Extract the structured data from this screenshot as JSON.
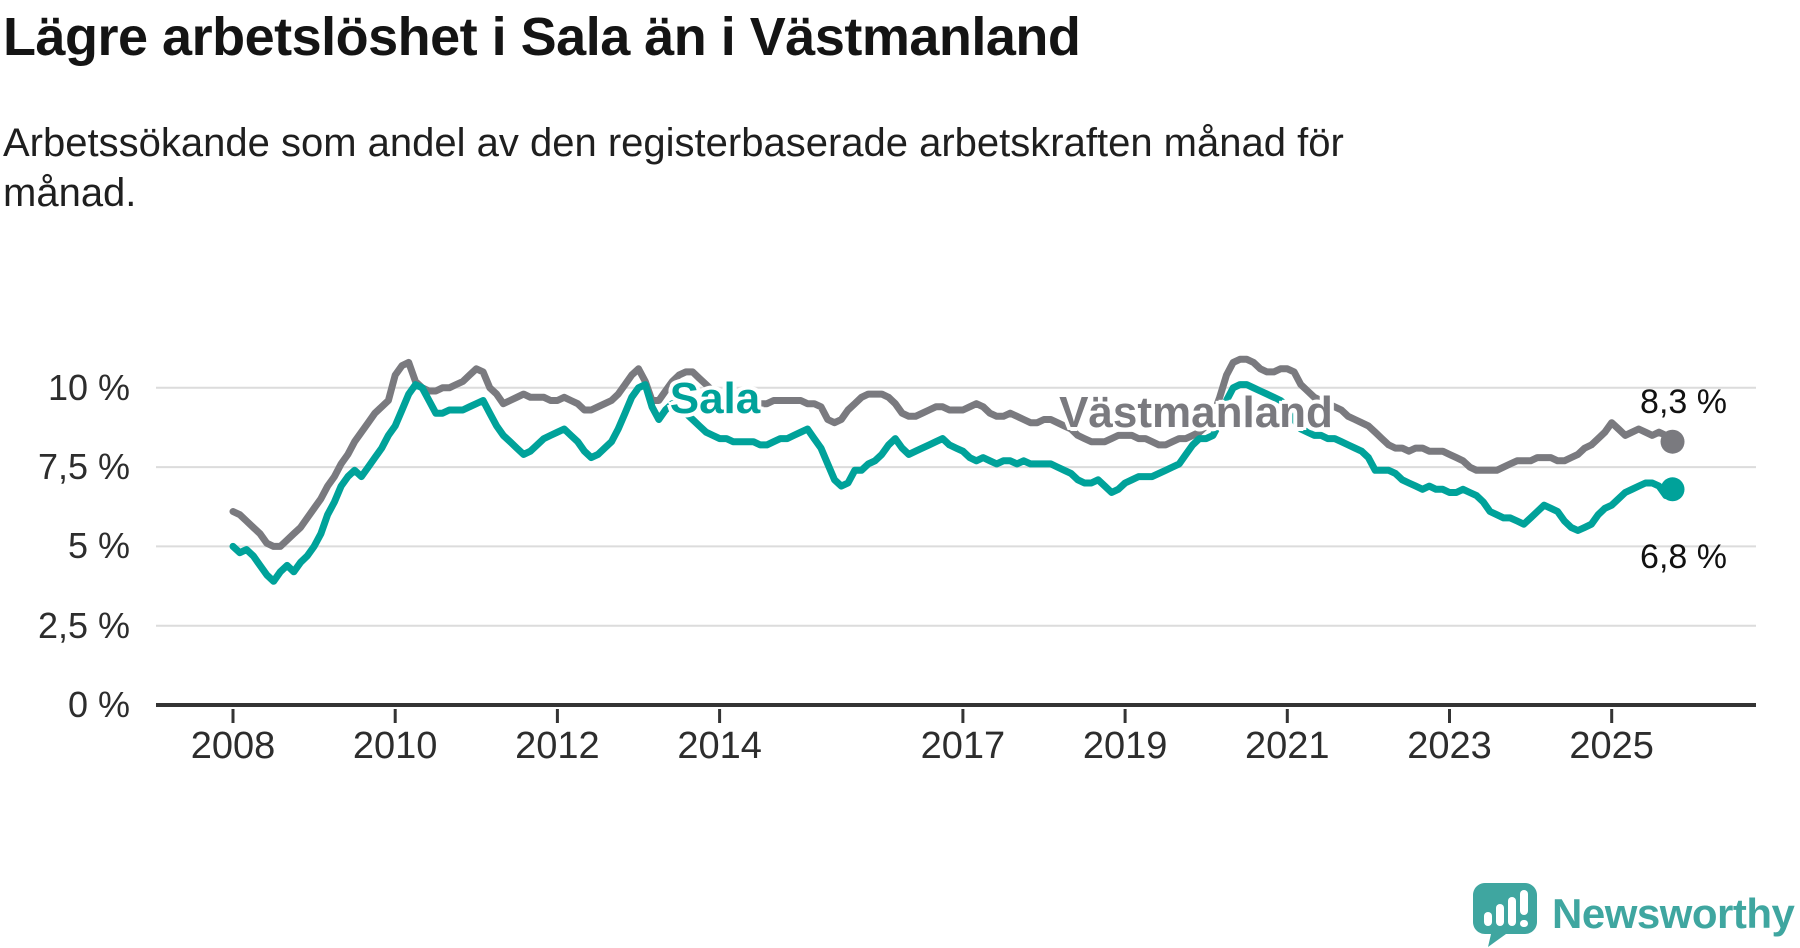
{
  "title": "Lägre arbetslöshet i Sala än i Västmanland",
  "subtitle": {
    "line1": "Arbetssökande som andel av den registerbaserade arbetskraften månad för",
    "line2": "månad."
  },
  "colors": {
    "sala": "#00a29a",
    "vastmanland": "#7a7a7f",
    "grid": "#dcdcdc",
    "axis": "#343434",
    "axis_text": "#2d2d2d",
    "annotation_text": "#111111",
    "logo": "#3fa6a0"
  },
  "branding": {
    "logo_text": "Newsworthy",
    "logo_icon": "speech-bubble-bar-chart-exclamation"
  },
  "chart_data": {
    "type": "line",
    "title": "Lägre arbetslöshet i Sala än i Västmanland",
    "subtitle": "Arbetssökande som andel av den registerbaserade arbetskraften månad för månad.",
    "unit": "percent",
    "frequency": "monthly",
    "x_start_year": 2008,
    "x_start_month": 1,
    "x_end": "2025-10",
    "ylim": [
      0,
      11.5
    ],
    "grid": true,
    "legend": "inline-labels",
    "y_ticks": [
      {
        "label": "10 %",
        "value": 10
      },
      {
        "label": "7,5 %",
        "value": 7.5
      },
      {
        "label": "5 %",
        "value": 5
      },
      {
        "label": "2,5 %",
        "value": 2.5
      },
      {
        "label": "0 %",
        "value": 0
      }
    ],
    "x_ticks": [
      {
        "label": "2008",
        "year": 2008
      },
      {
        "label": "2010",
        "year": 2010
      },
      {
        "label": "2012",
        "year": 2012
      },
      {
        "label": "2014",
        "year": 2014
      },
      {
        "label": "2017",
        "year": 2017
      },
      {
        "label": "2019",
        "year": 2019
      },
      {
        "label": "2021",
        "year": 2021
      },
      {
        "label": "2023",
        "year": 2023
      },
      {
        "label": "2025",
        "year": 2025
      }
    ],
    "series": [
      {
        "id": "sala",
        "name": "Sala",
        "color": "#00a29a",
        "end_value": 6.8,
        "end_label": "6,8 %",
        "values": [
          5.0,
          4.8,
          4.9,
          4.7,
          4.4,
          4.1,
          3.9,
          4.2,
          4.4,
          4.2,
          4.5,
          4.7,
          5.0,
          5.4,
          6.0,
          6.4,
          6.9,
          7.2,
          7.4,
          7.2,
          7.5,
          7.8,
          8.1,
          8.5,
          8.8,
          9.3,
          9.8,
          10.1,
          10.0,
          9.6,
          9.2,
          9.2,
          9.3,
          9.3,
          9.3,
          9.4,
          9.5,
          9.6,
          9.2,
          8.8,
          8.5,
          8.3,
          8.1,
          7.9,
          8.0,
          8.2,
          8.4,
          8.5,
          8.6,
          8.7,
          8.5,
          8.3,
          8.0,
          7.8,
          7.9,
          8.1,
          8.3,
          8.7,
          9.2,
          9.7,
          10.0,
          10.1,
          9.4,
          9.0,
          9.3,
          9.5,
          9.4,
          9.2,
          9.0,
          8.8,
          8.6,
          8.5,
          8.4,
          8.4,
          8.3,
          8.3,
          8.3,
          8.3,
          8.2,
          8.2,
          8.3,
          8.4,
          8.4,
          8.5,
          8.6,
          8.7,
          8.4,
          8.1,
          7.6,
          7.1,
          6.9,
          7.0,
          7.4,
          7.4,
          7.6,
          7.7,
          7.9,
          8.2,
          8.4,
          8.1,
          7.9,
          8.0,
          8.1,
          8.2,
          8.3,
          8.4,
          8.2,
          8.1,
          8.0,
          7.8,
          7.7,
          7.8,
          7.7,
          7.6,
          7.7,
          7.7,
          7.6,
          7.7,
          7.6,
          7.6,
          7.6,
          7.6,
          7.5,
          7.4,
          7.3,
          7.1,
          7.0,
          7.0,
          7.1,
          6.9,
          6.7,
          6.8,
          7.0,
          7.1,
          7.2,
          7.2,
          7.2,
          7.3,
          7.4,
          7.5,
          7.6,
          7.9,
          8.2,
          8.4,
          8.4,
          8.5,
          8.9,
          9.6,
          10.0,
          10.1,
          10.1,
          10.0,
          9.9,
          9.8,
          9.7,
          9.6,
          9.4,
          9.0,
          8.7,
          8.6,
          8.5,
          8.5,
          8.4,
          8.4,
          8.3,
          8.2,
          8.1,
          8.0,
          7.8,
          7.4,
          7.4,
          7.4,
          7.3,
          7.1,
          7.0,
          6.9,
          6.8,
          6.9,
          6.8,
          6.8,
          6.7,
          6.7,
          6.8,
          6.7,
          6.6,
          6.4,
          6.1,
          6.0,
          5.9,
          5.9,
          5.8,
          5.7,
          5.9,
          6.1,
          6.3,
          6.2,
          6.1,
          5.8,
          5.6,
          5.5,
          5.6,
          5.7,
          6.0,
          6.2,
          6.3,
          6.5,
          6.7,
          6.8,
          6.9,
          7.0,
          7.0,
          6.9,
          6.6,
          6.8
        ]
      },
      {
        "id": "vastmanland",
        "name": "Västmanland",
        "color": "#7a7a7f",
        "end_value": 8.3,
        "end_label": "8,3 %",
        "values": [
          6.1,
          6.0,
          5.8,
          5.6,
          5.4,
          5.1,
          5.0,
          5.0,
          5.2,
          5.4,
          5.6,
          5.9,
          6.2,
          6.5,
          6.9,
          7.2,
          7.6,
          7.9,
          8.3,
          8.6,
          8.9,
          9.2,
          9.4,
          9.6,
          10.4,
          10.7,
          10.8,
          10.2,
          10.0,
          9.9,
          9.9,
          10.0,
          10.0,
          10.1,
          10.2,
          10.4,
          10.6,
          10.5,
          10.0,
          9.8,
          9.5,
          9.6,
          9.7,
          9.8,
          9.7,
          9.7,
          9.7,
          9.6,
          9.6,
          9.7,
          9.6,
          9.5,
          9.3,
          9.3,
          9.4,
          9.5,
          9.6,
          9.8,
          10.1,
          10.4,
          10.6,
          10.2,
          9.6,
          9.6,
          9.9,
          10.2,
          10.4,
          10.5,
          10.5,
          10.3,
          10.1,
          9.9,
          9.8,
          9.7,
          9.6,
          9.5,
          9.5,
          9.4,
          9.5,
          9.5,
          9.6,
          9.6,
          9.6,
          9.6,
          9.6,
          9.5,
          9.5,
          9.4,
          9.0,
          8.9,
          9.0,
          9.3,
          9.5,
          9.7,
          9.8,
          9.8,
          9.8,
          9.7,
          9.5,
          9.2,
          9.1,
          9.1,
          9.2,
          9.3,
          9.4,
          9.4,
          9.3,
          9.3,
          9.3,
          9.4,
          9.5,
          9.4,
          9.2,
          9.1,
          9.1,
          9.2,
          9.1,
          9.0,
          8.9,
          8.9,
          9.0,
          9.0,
          8.9,
          8.8,
          8.7,
          8.5,
          8.4,
          8.3,
          8.3,
          8.3,
          8.4,
          8.5,
          8.5,
          8.5,
          8.4,
          8.4,
          8.3,
          8.2,
          8.2,
          8.3,
          8.4,
          8.4,
          8.5,
          8.6,
          8.8,
          9.1,
          9.7,
          10.4,
          10.8,
          10.9,
          10.9,
          10.8,
          10.6,
          10.5,
          10.5,
          10.6,
          10.6,
          10.5,
          10.1,
          9.9,
          9.7,
          9.6,
          9.5,
          9.4,
          9.3,
          9.1,
          9.0,
          8.9,
          8.8,
          8.6,
          8.4,
          8.2,
          8.1,
          8.1,
          8.0,
          8.1,
          8.1,
          8.0,
          8.0,
          8.0,
          7.9,
          7.8,
          7.7,
          7.5,
          7.4,
          7.4,
          7.4,
          7.4,
          7.5,
          7.6,
          7.7,
          7.7,
          7.7,
          7.8,
          7.8,
          7.8,
          7.7,
          7.7,
          7.8,
          7.9,
          8.1,
          8.2,
          8.4,
          8.6,
          8.9,
          8.7,
          8.5,
          8.6,
          8.7,
          8.6,
          8.5,
          8.6,
          8.5,
          8.3
        ]
      }
    ]
  }
}
